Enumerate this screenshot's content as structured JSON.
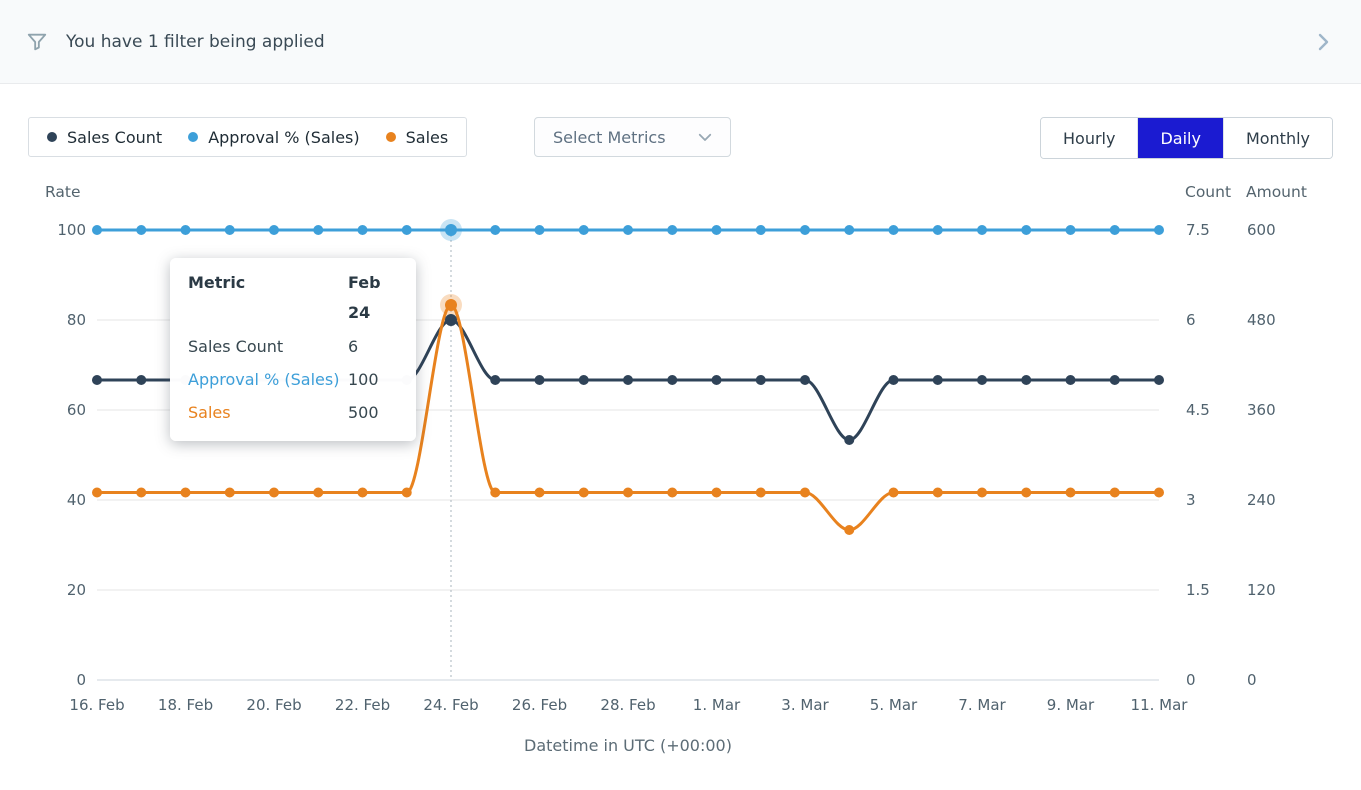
{
  "filter_bar": {
    "text": "You have 1 filter being applied"
  },
  "legend": {
    "items": [
      {
        "label": "Sales Count",
        "color": "#2f4358"
      },
      {
        "label": "Approval % (Sales)",
        "color": "#3d9fd9"
      },
      {
        "label": "Sales",
        "color": "#e8821e"
      }
    ]
  },
  "metrics_dropdown": {
    "label": "Select Metrics"
  },
  "interval_toggle": {
    "active_color": "#1b1bd1",
    "options": [
      {
        "label": "Hourly",
        "active": false
      },
      {
        "label": "Daily",
        "active": true
      },
      {
        "label": "Monthly",
        "active": false
      }
    ]
  },
  "tooltip": {
    "header_left": "Metric",
    "header_right": "Feb 24",
    "rows": [
      {
        "label": "Sales Count",
        "value": "6",
        "color": "#37474f"
      },
      {
        "label": "Approval % (Sales)",
        "value": "100",
        "color": "#3d9fd9"
      },
      {
        "label": "Sales",
        "value": "500",
        "color": "#e8821e"
      }
    ]
  },
  "chart_data": {
    "type": "line",
    "xlabel": "Datetime in UTC (+00:00)",
    "dates": [
      "Feb 16",
      "Feb 17",
      "Feb 18",
      "Feb 19",
      "Feb 20",
      "Feb 21",
      "Feb 22",
      "Feb 23",
      "Feb 24",
      "Feb 25",
      "Feb 26",
      "Feb 27",
      "Feb 28",
      "Feb 29",
      "Mar 1",
      "Mar 2",
      "Mar 3",
      "Mar 4",
      "Mar 5",
      "Mar 6",
      "Mar 7",
      "Mar 8",
      "Mar 9",
      "Mar 10",
      "Mar 11"
    ],
    "x_tick_indices": [
      0,
      2,
      4,
      6,
      8,
      10,
      12,
      14,
      16,
      18,
      20,
      22,
      24
    ],
    "x_tick_labels": [
      "16. Feb",
      "18. Feb",
      "20. Feb",
      "22. Feb",
      "24. Feb",
      "26. Feb",
      "28. Feb",
      "1. Mar",
      "3. Mar",
      "5. Mar",
      "7. Mar",
      "9. Mar",
      "11. Mar"
    ],
    "highlight_index": 8,
    "axes": {
      "left": {
        "title": "Rate",
        "ticks": [
          0,
          20,
          40,
          60,
          80,
          100
        ],
        "range": [
          0,
          100
        ]
      },
      "right_count": {
        "title": "Count",
        "ticks": [
          0,
          1.5,
          3,
          4.5,
          6,
          7.5
        ],
        "range": [
          0,
          7.5
        ]
      },
      "right_amount": {
        "title": "Amount",
        "ticks": [
          0,
          120,
          240,
          360,
          480,
          600
        ],
        "range": [
          0,
          600
        ]
      }
    },
    "series": [
      {
        "name": "Sales Count",
        "axis": "right_count",
        "color": "#2f4358",
        "highlight_halo": false,
        "values": [
          5,
          5,
          5,
          5,
          5,
          5,
          5,
          5,
          6,
          5,
          5,
          5,
          5,
          5,
          5,
          5,
          5,
          4,
          5,
          5,
          5,
          5,
          5,
          5,
          5
        ]
      },
      {
        "name": "Approval % (Sales)",
        "axis": "left",
        "color": "#3d9fd9",
        "highlight_halo": true,
        "values": [
          100,
          100,
          100,
          100,
          100,
          100,
          100,
          100,
          100,
          100,
          100,
          100,
          100,
          100,
          100,
          100,
          100,
          100,
          100,
          100,
          100,
          100,
          100,
          100,
          100
        ]
      },
      {
        "name": "Sales",
        "axis": "right_amount",
        "color": "#e8821e",
        "highlight_halo": true,
        "values": [
          250,
          250,
          250,
          250,
          250,
          250,
          250,
          250,
          500,
          250,
          250,
          250,
          250,
          250,
          250,
          250,
          250,
          200,
          250,
          250,
          250,
          250,
          250,
          250,
          250
        ]
      }
    ]
  }
}
